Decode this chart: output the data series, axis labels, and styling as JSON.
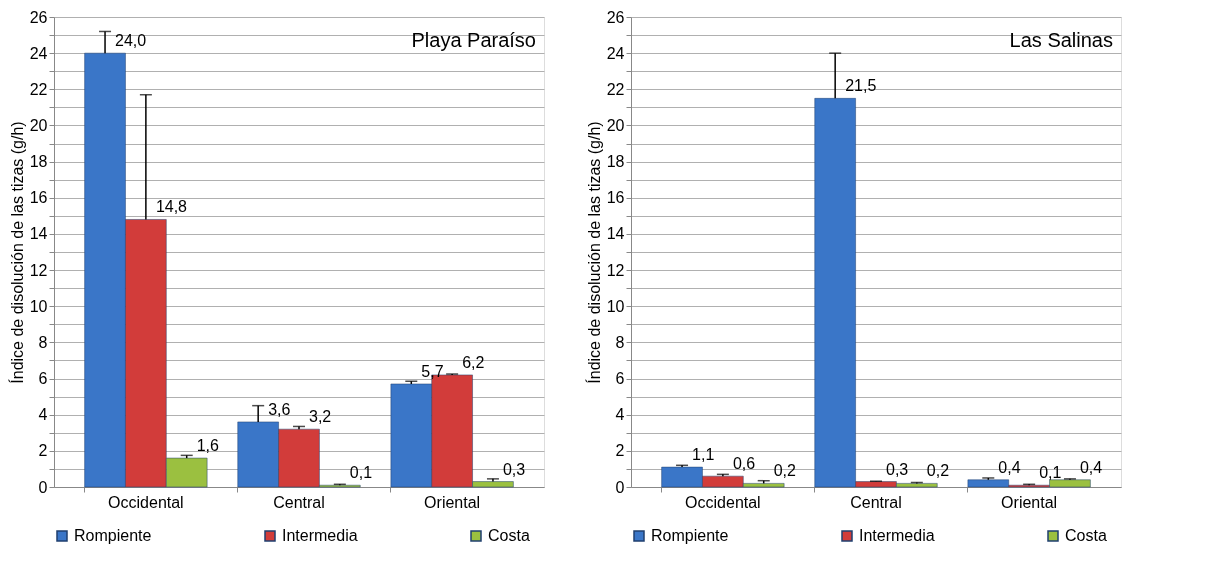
{
  "chart_data": [
    {
      "type": "bar",
      "title": "Playa Paraíso",
      "ylabel": "Índice de disolución de las tizas (g/h)",
      "categories": [
        "Occidental",
        "Central",
        "Oriental"
      ],
      "series": [
        {
          "name": "Rompiente",
          "color": "#3a76c8",
          "values": [
            24.0,
            3.6,
            5.7
          ],
          "errors": [
            [
              24.0,
              25.2
            ],
            [
              3.6,
              4.5
            ],
            [
              5.7,
              5.85
            ]
          ],
          "value_labels": [
            "24,0",
            "3,6",
            "5,7"
          ]
        },
        {
          "name": "Intermedia",
          "color": "#d23c3a",
          "values": [
            14.8,
            3.2,
            6.2
          ],
          "errors": [
            [
              14.8,
              21.7
            ],
            [
              3.2,
              3.35
            ],
            [
              6.2,
              6.25
            ]
          ],
          "value_labels": [
            "14,8",
            "3,2",
            "6,2"
          ]
        },
        {
          "name": "Costa",
          "color": "#9bc040",
          "values": [
            1.6,
            0.1,
            0.3
          ],
          "errors": [
            [
              1.6,
              1.75
            ],
            [
              0.1,
              0.15
            ],
            [
              0.3,
              0.45
            ]
          ],
          "value_labels": [
            "1,6",
            "0,1",
            "0,3"
          ]
        }
      ],
      "ylim": [
        0,
        26
      ],
      "yticks": [
        0,
        {
          "value": 1,
          "label": null
        },
        2,
        {
          "value": 3,
          "label": null
        },
        4,
        {
          "value": 5,
          "label": null
        },
        6,
        {
          "value": 7,
          "label": null
        },
        8,
        {
          "value": 9,
          "label": null
        },
        10,
        {
          "value": 11,
          "label": null
        },
        12,
        {
          "value": 13,
          "label": null
        },
        14,
        {
          "value": 15,
          "label": null
        },
        16,
        {
          "value": 17,
          "label": null
        },
        18,
        {
          "value": 19,
          "label": null
        },
        20,
        {
          "value": 21,
          "label": null
        },
        22,
        {
          "value": 23,
          "label": null
        },
        24,
        {
          "value": 25,
          "label": null
        },
        26
      ],
      "grid": "y",
      "legend": "bottom"
    },
    {
      "type": "bar",
      "title": "Las Salinas",
      "ylabel": "Índice de disolución de las tizas (g/h)",
      "categories": [
        "Occidental",
        "Central",
        "Oriental"
      ],
      "series": [
        {
          "name": "Rompiente",
          "color": "#3a76c8",
          "values": [
            1.1,
            21.5,
            0.4
          ],
          "errors": [
            [
              1.1,
              1.2
            ],
            [
              21.5,
              24.0
            ],
            [
              0.4,
              0.5
            ]
          ],
          "value_labels": [
            "1,1",
            "21,5",
            "0,4"
          ]
        },
        {
          "name": "Intermedia",
          "color": "#d23c3a",
          "values": [
            0.6,
            0.3,
            0.1
          ],
          "errors": [
            [
              0.6,
              0.7
            ],
            [
              0.3,
              0.32
            ],
            [
              0.1,
              0.15
            ]
          ],
          "value_labels": [
            "0,6",
            "0,3",
            "0,1"
          ]
        },
        {
          "name": "Costa",
          "color": "#9bc040",
          "values": [
            0.2,
            0.2,
            0.4
          ],
          "errors": [
            [
              0.2,
              0.35
            ],
            [
              0.2,
              0.25
            ],
            [
              0.4,
              0.45
            ]
          ],
          "value_labels": [
            "0,2",
            "0,2",
            "0,4"
          ]
        }
      ],
      "ylim": [
        0,
        26
      ],
      "yticks": [
        0,
        {
          "value": 1,
          "label": null
        },
        2,
        {
          "value": 3,
          "label": null
        },
        4,
        {
          "value": 5,
          "label": null
        },
        6,
        {
          "value": 7,
          "label": null
        },
        8,
        {
          "value": 9,
          "label": null
        },
        10,
        {
          "value": 11,
          "label": null
        },
        12,
        {
          "value": 13,
          "label": null
        },
        14,
        {
          "value": 15,
          "label": null
        },
        16,
        {
          "value": 17,
          "label": null
        },
        18,
        {
          "value": 19,
          "label": null
        },
        20,
        {
          "value": 21,
          "label": null
        },
        22,
        {
          "value": 23,
          "label": null
        },
        24,
        {
          "value": 25,
          "label": null
        },
        26
      ],
      "grid": "y",
      "legend": "bottom"
    }
  ]
}
